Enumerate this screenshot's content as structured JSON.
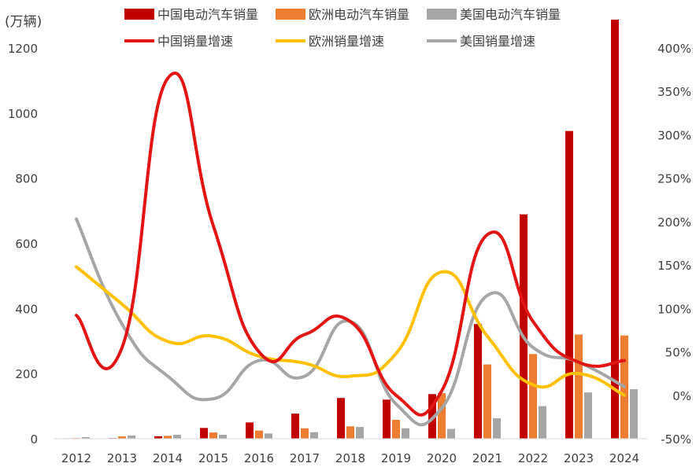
{
  "chart_data": {
    "type": "bar+line",
    "y_left_unit": "(万辆)",
    "categories": [
      "2012",
      "2013",
      "2014",
      "2015",
      "2016",
      "2017",
      "2018",
      "2019",
      "2020",
      "2021",
      "2022",
      "2023",
      "2024"
    ],
    "bar_series": [
      {
        "name": "中国电动汽车销量",
        "color": "#C00000",
        "values": [
          1.3,
          1.8,
          7.5,
          33,
          50,
          77,
          125,
          120,
          137,
          352,
          689,
          945,
          1287
        ]
      },
      {
        "name": "欧洲电动汽车销量",
        "color": "#ED7D31",
        "values": [
          2,
          7,
          9,
          19,
          25,
          32,
          38,
          58,
          140,
          228,
          260,
          320,
          317
        ]
      },
      {
        "name": "美国电动汽车销量",
        "color": "#A6A6A6",
        "values": [
          5,
          10,
          12,
          12,
          16,
          20,
          36,
          32,
          30,
          63,
          100,
          142,
          152
        ]
      }
    ],
    "line_series": [
      {
        "name": "中国销量增速",
        "color": "#E31414",
        "values": [
          0.92,
          0.55,
          3.65,
          1.95,
          0.5,
          0.7,
          0.85,
          0.0,
          0.05,
          1.85,
          0.85,
          0.38,
          0.4
        ]
      },
      {
        "name": "欧洲销量增速",
        "color": "#FFC000",
        "values": [
          1.48,
          1.05,
          0.62,
          0.68,
          0.45,
          0.37,
          0.22,
          0.48,
          1.42,
          0.68,
          0.12,
          0.25,
          0.0
        ]
      },
      {
        "name": "美国销量增速",
        "color": "#A6A6A6",
        "values": [
          2.03,
          0.82,
          0.22,
          -0.04,
          0.4,
          0.22,
          0.85,
          -0.1,
          -0.15,
          1.15,
          0.55,
          0.38,
          0.1
        ]
      }
    ],
    "y_left": {
      "min": 0,
      "max": 1200,
      "ticks": [
        0,
        200,
        400,
        600,
        800,
        1000,
        1200
      ]
    },
    "y_right": {
      "min": -0.5,
      "max": 4.0,
      "ticks": [
        -0.5,
        0,
        0.5,
        1.0,
        1.5,
        2.0,
        2.5,
        3.0,
        3.5,
        4.0
      ],
      "tick_labels": [
        "-50%",
        "0%",
        "50%",
        "100%",
        "150%",
        "200%",
        "250%",
        "300%",
        "350%",
        "400%"
      ]
    },
    "legend_position": "top",
    "grid": false
  }
}
